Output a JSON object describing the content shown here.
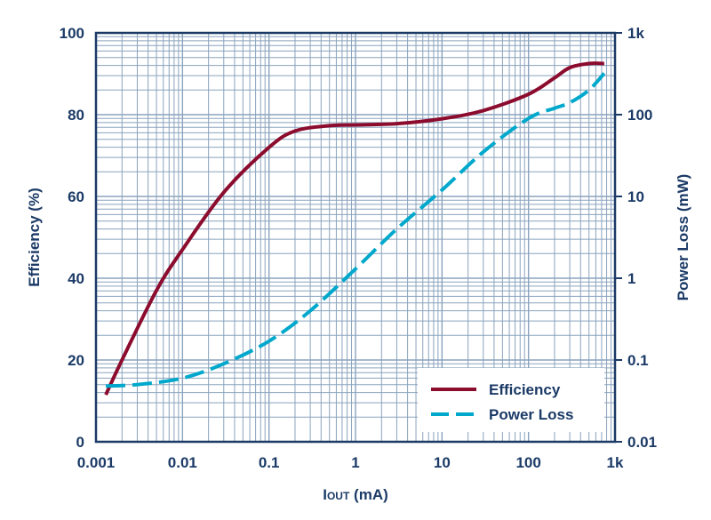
{
  "chart_data": {
    "type": "line",
    "xlabel_main": "I",
    "xlabel_sub": "OUT",
    "xlabel_unit": " (mA)",
    "ylabel": "Efficiency (%)",
    "y2label": "Power Loss (mW)",
    "xscale": "log",
    "xlim": [
      0.001,
      1000
    ],
    "ylim": [
      0,
      100
    ],
    "y2scale": "log",
    "y2lim": [
      0.01,
      1000
    ],
    "xticks": [
      "0.001",
      "0.01",
      "0.1",
      "1",
      "10",
      "100",
      "1k"
    ],
    "yticks": [
      "0",
      "20",
      "40",
      "60",
      "80",
      "100"
    ],
    "y2ticks": [
      "0.01",
      "0.1",
      "1",
      "10",
      "100",
      "1k"
    ],
    "grid": true,
    "legend_position": "bottom-right",
    "series": [
      {
        "name": "Efficiency",
        "axis": "left",
        "color": "#8c0c2e",
        "style": "solid",
        "x": [
          0.0013,
          0.002,
          0.005,
          0.01,
          0.03,
          0.1,
          0.2,
          0.5,
          1,
          3,
          10,
          30,
          100,
          200,
          300,
          500,
          750
        ],
        "y": [
          11.5,
          20,
          37,
          47,
          61,
          72,
          76,
          77.3,
          77.5,
          77.8,
          79,
          81,
          85,
          89,
          91.5,
          92.5,
          92.5
        ]
      },
      {
        "name": "Power Loss",
        "axis": "right",
        "color": "#00a8cc",
        "style": "dashed",
        "x": [
          0.0013,
          0.003,
          0.01,
          0.03,
          0.1,
          0.3,
          1,
          3,
          10,
          30,
          100,
          200,
          300,
          500,
          750
        ],
        "y": [
          0.048,
          0.05,
          0.06,
          0.09,
          0.17,
          0.4,
          1.3,
          4,
          12,
          35,
          90,
          120,
          140,
          200,
          320
        ]
      }
    ]
  }
}
